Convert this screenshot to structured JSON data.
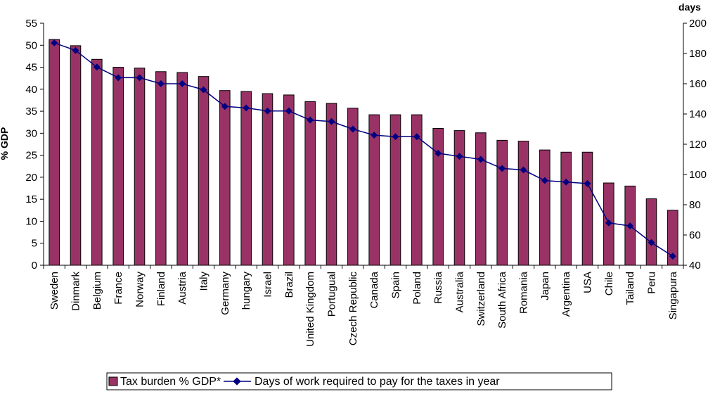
{
  "chart_data": {
    "type": "bar",
    "categories": [
      "Sweden",
      "Dinmark",
      "Belgium",
      "France",
      "Norway",
      "Finland",
      "Austria",
      "Italy",
      "Germany",
      "hungary",
      "Israel",
      "Brazil",
      "United Kingdom",
      "Portugual",
      "Czech Republic",
      "Canada",
      "Spain",
      "Poland",
      "Russia",
      "Australia",
      "Switzerland",
      "South Africa",
      "Romania",
      "Japan",
      "Argentina",
      "USA",
      "Chile",
      "Tailand",
      "Peru",
      "Singapura"
    ],
    "series": [
      {
        "name": "Tax burden % GDP*",
        "type": "bar",
        "axis": "left",
        "color": "#993366",
        "values": [
          51.3,
          49.9,
          46.8,
          45.0,
          44.8,
          44.0,
          43.8,
          42.9,
          39.7,
          39.5,
          39.0,
          38.7,
          37.2,
          36.8,
          35.7,
          34.2,
          34.2,
          34.2,
          31.1,
          30.6,
          30.1,
          28.4,
          28.2,
          26.2,
          25.7,
          25.7,
          18.7,
          18.0,
          15.1,
          12.5
        ]
      },
      {
        "name": "Days of work required to pay for the taxes in year",
        "type": "line",
        "axis": "right",
        "color": "#000080",
        "values": [
          187,
          182,
          171,
          164,
          164,
          160,
          160,
          156,
          145,
          144,
          142,
          142,
          136,
          135,
          130,
          126,
          125,
          125,
          114,
          112,
          110,
          104,
          103,
          96,
          95,
          94,
          68,
          66,
          55,
          46
        ]
      }
    ],
    "ylabel": "% GDP",
    "ylabel_right": "days",
    "ylim": [
      0,
      55
    ],
    "ylim_right": [
      40,
      200
    ],
    "yticks": [
      0,
      5,
      10,
      15,
      20,
      25,
      30,
      35,
      40,
      45,
      50,
      55
    ],
    "yticks_right": [
      40,
      60,
      80,
      100,
      120,
      140,
      160,
      180,
      200
    ],
    "grid": false,
    "legend_position": "bottom"
  }
}
